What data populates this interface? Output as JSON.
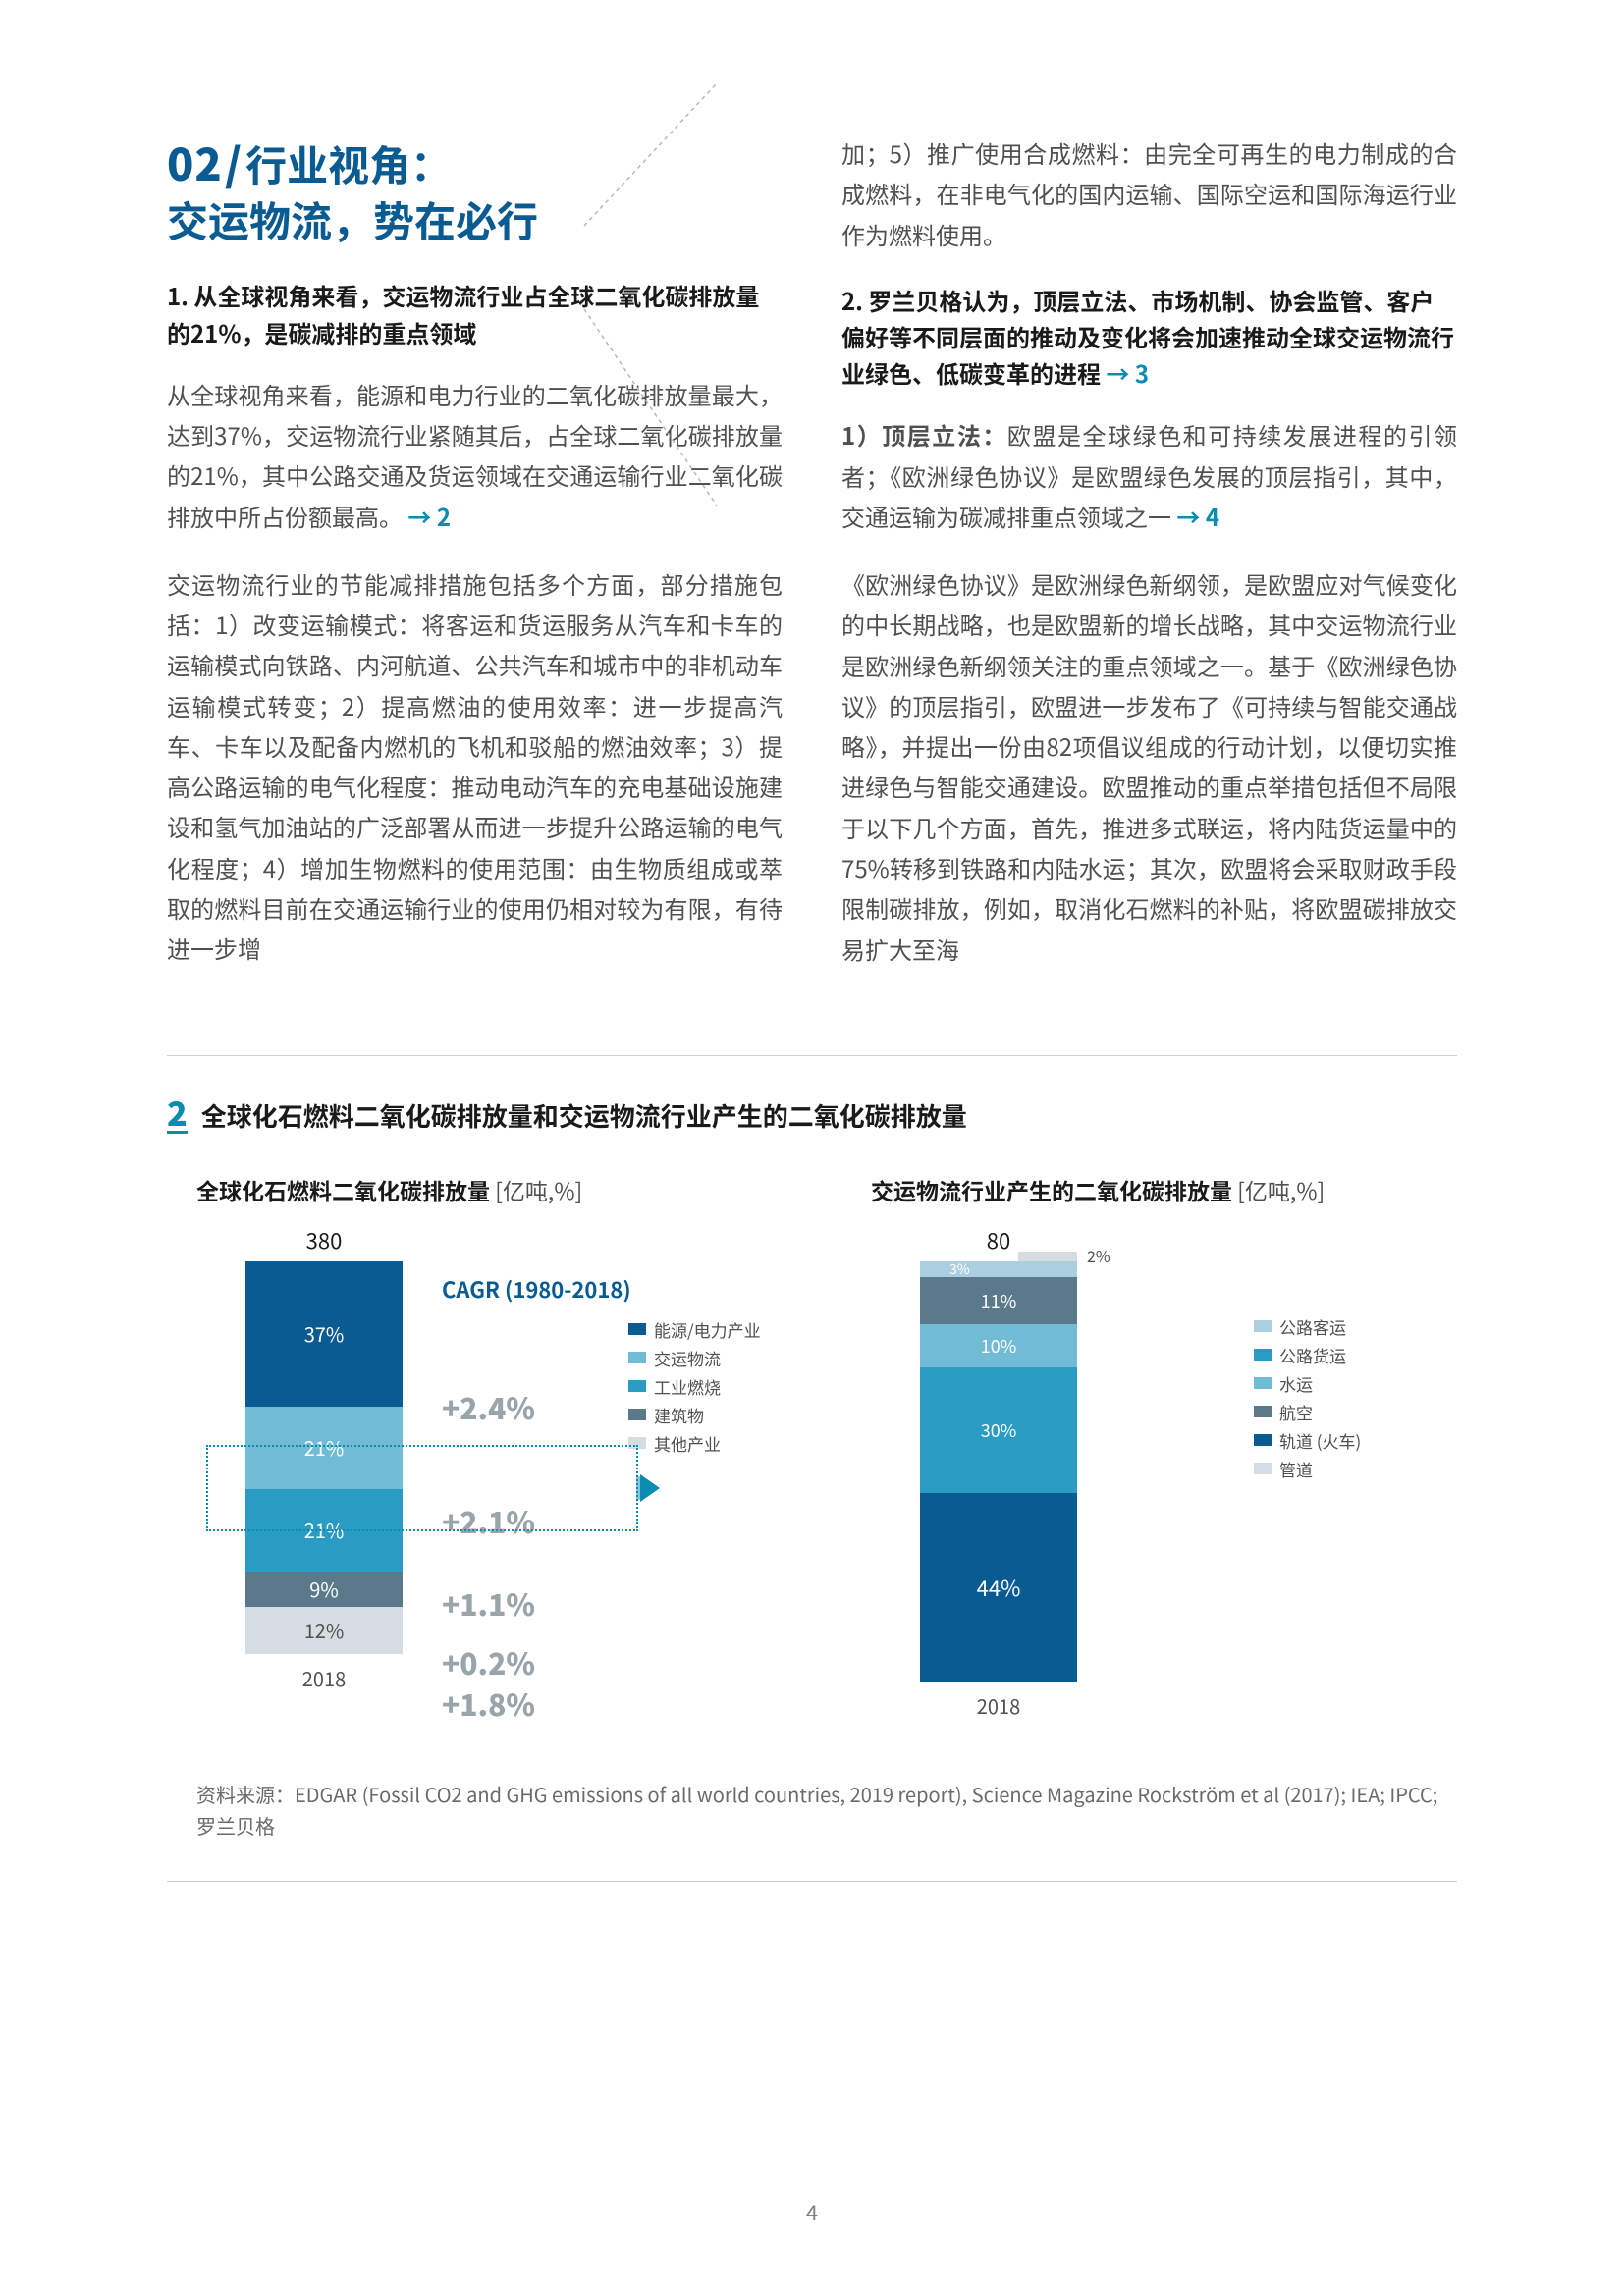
{
  "header": {
    "section_number": "02",
    "slash": "/",
    "title_line1": "行业视角：",
    "title_line2": "交运物流，势在必行"
  },
  "left_col": {
    "sub1": "1. 从全球视角来看，交运物流行业占全球二氧化碳排放量的21%，是碳减排的重点领域",
    "p1": "从全球视角来看，能源和电力行业的二氧化碳排放量最大，达到37%，交运物流行业紧随其后，占全球二氧化碳排放量的21%，其中公路交通及货运领域在交通运输行业二氧化碳排放中所占份额最高。",
    "ref1": "→ 2",
    "p2": "交运物流行业的节能减排措施包括多个方面，部分措施包括：1）改变运输模式：将客运和货运服务从汽车和卡车的运输模式向铁路、内河航道、公共汽车和城市中的非机动车运输模式转变；2）提高燃油的使用效率：进一步提高汽车、卡车以及配备内燃机的飞机和驳船的燃油效率；3）提高公路运输的电气化程度：推动电动汽车的充电基础设施建设和氢气加油站的广泛部署从而进一步提升公路运输的电气化程度；4）增加生物燃料的使用范围：由生物质组成或萃取的燃料目前在交通运输行业的使用仍相对较为有限，有待进一步增"
  },
  "right_col": {
    "p0": "加；5）推广使用合成燃料：由完全可再生的电力制成的合成燃料，在非电气化的国内运输、国际空运和国际海运行业作为燃料使用。",
    "sub2": "2. 罗兰贝格认为，顶层立法、市场机制、协会监管、客户偏好等不同层面的推动及变化将会加速推动全球交运物流行业绿色、低碳变革的进程",
    "ref2": "→ 3",
    "p1_label": "1）顶层立法：",
    "p1_rest": "欧盟是全球绿色和可持续发展进程的引领者；《欧洲绿色协议》是欧盟绿色发展的顶层指引，其中，交通运输为碳减排重点领域之一",
    "ref3": "→ 4",
    "p2": "《欧洲绿色协议》是欧洲绿色新纲领，是欧盟应对气候变化的中长期战略，也是欧盟新的增长战略，其中交运物流行业是欧洲绿色新纲领关注的重点领域之一。基于《欧洲绿色协议》的顶层指引，欧盟进一步发布了《可持续与智能交通战略》，并提出一份由82项倡议组成的行动计划，以便切实推进绿色与智能交通建设。欧盟推动的重点举措包括但不局限于以下几个方面，首先，推进多式联运，将内陆货运量中的75%转移到铁路和内陆水运；其次，欧盟将会采取财政手段限制碳排放，例如，取消化石燃料的补贴，将欧盟碳排放交易扩大至海"
  },
  "chart": {
    "caption_idx": "2",
    "caption_text": "全球化石燃料二氧化碳排放量和交运物流行业产生的二氧化碳排放量",
    "left": {
      "title": "全球化石燃料二氧化碳排放量",
      "unit": " [亿吨,%]",
      "total": "380",
      "cagr_title": "CAGR (1980-2018)",
      "year": "2018",
      "segments": [
        {
          "label": "37%",
          "height": 148,
          "color": "#0a5b92",
          "cagr": "+2.4%"
        },
        {
          "label": "21%",
          "height": 84,
          "color": "#71bcd4",
          "cagr": "+2.1%"
        },
        {
          "label": "21%",
          "height": 84,
          "color": "#2a9cc4",
          "cagr": "+1.1%"
        },
        {
          "label": "9%",
          "height": 36,
          "color": "#5a7a8c",
          "cagr": "+0.2%"
        },
        {
          "label": "12%",
          "height": 48,
          "color": "#d5dde2",
          "cagr": "+1.8%",
          "textcolor": "#505050"
        }
      ],
      "legend": [
        {
          "label": "能源/电力产业",
          "color": "#0a5b92"
        },
        {
          "label": "交运物流",
          "color": "#71bcd4"
        },
        {
          "label": "工业燃烧",
          "color": "#2a9cc4"
        },
        {
          "label": "建筑物",
          "color": "#5a7a8c"
        },
        {
          "label": "其他产业",
          "color": "#d5dde2"
        }
      ]
    },
    "right": {
      "title": "交运物流行业产生的二氧化碳排放量",
      "unit": " [亿吨,%]",
      "total": "80",
      "year": "2018",
      "segments": [
        {
          "label": "3%",
          "height": 16,
          "color": "#a9cfe0",
          "textcolor": "#ffffff",
          "side": true,
          "side_label": "2%",
          "side_color": "#d5dde2"
        },
        {
          "label": "11%",
          "height": 48,
          "color": "#5a7a8c"
        },
        {
          "label": "10%",
          "height": 44,
          "color": "#71bcd4"
        },
        {
          "label": "30%",
          "height": 128,
          "color": "#2a9cc4"
        },
        {
          "label": "44%",
          "height": 192,
          "color": "#0a5b92",
          "big": true
        }
      ],
      "legend": [
        {
          "label": "公路客运",
          "color": "#a9cfe0"
        },
        {
          "label": "公路货运",
          "color": "#2a9cc4"
        },
        {
          "label": "水运",
          "color": "#71bcd4"
        },
        {
          "label": "航空",
          "color": "#5a7a8c"
        },
        {
          "label": "轨道 (火车)",
          "color": "#0a5b92"
        },
        {
          "label": "管道",
          "color": "#d5dde2"
        }
      ]
    },
    "source_label": "资料来源：",
    "source_text": "EDGAR (Fossil CO2 and GHG emissions of all world countries, 2019 report), Science Magazine Rockström et al (2017); IEA; IPCC; 罗兰贝格"
  },
  "page_number": "4"
}
